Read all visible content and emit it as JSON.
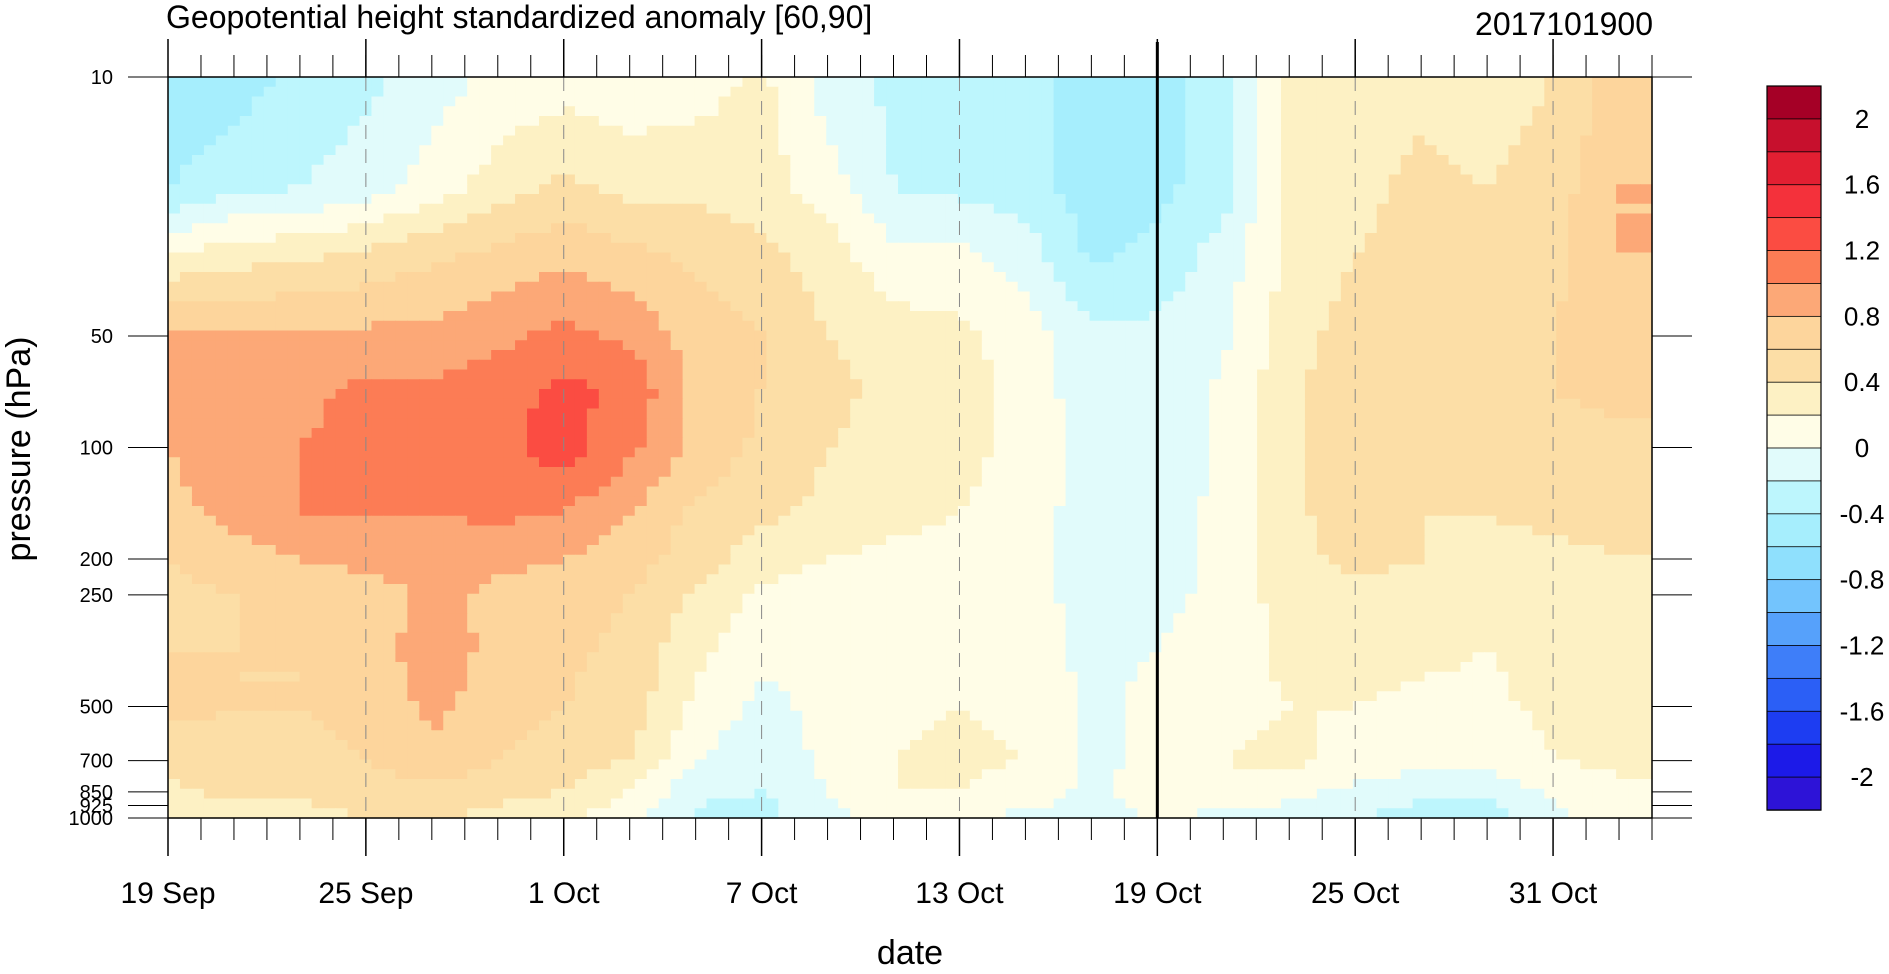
{
  "chart_data": {
    "type": "heatmap",
    "subtype": "time-pressure filled contour",
    "title": "Geopotential height standardized anomaly [60,90]",
    "date_label": "2017101900",
    "xlabel": "date",
    "ylabel": "pressure (hPa)",
    "x_range": [
      "2017-09-19",
      "2017-11-03"
    ],
    "x_ticks": [
      {
        "date": "2017-09-19",
        "label": "19 Sep"
      },
      {
        "date": "2017-09-25",
        "label": "25 Sep"
      },
      {
        "date": "2017-10-01",
        "label": "1 Oct"
      },
      {
        "date": "2017-10-07",
        "label": "7 Oct"
      },
      {
        "date": "2017-10-13",
        "label": "13 Oct"
      },
      {
        "date": "2017-10-19",
        "label": "19 Oct"
      },
      {
        "date": "2017-10-25",
        "label": "25 Oct"
      },
      {
        "date": "2017-10-31",
        "label": "31 Oct"
      }
    ],
    "y_scale": "log",
    "y_reversed": true,
    "y_range": [
      1000,
      10
    ],
    "y_ticks": [
      10,
      50,
      100,
      200,
      250,
      500,
      700,
      850,
      925,
      1000
    ],
    "y_tick_labels": [
      "10",
      "50",
      "100",
      "200",
      "250",
      "500",
      "700",
      "850",
      "925",
      "1000"
    ],
    "vertical_line_date": "2017-10-19",
    "colorbar": {
      "levels": [
        -2.2,
        -2,
        -1.8,
        -1.6,
        -1.4,
        -1.2,
        -1,
        -0.8,
        -0.6,
        -0.4,
        -0.2,
        0,
        0.2,
        0.4,
        0.6,
        0.8,
        1,
        1.2,
        1.4,
        1.6,
        1.8,
        2,
        2.2
      ],
      "colors": [
        "#2d13d7",
        "#1c1ae8",
        "#1d3df2",
        "#2b5ff6",
        "#3e7ef9",
        "#56a1fb",
        "#73c4fd",
        "#8fe0fd",
        "#a6eefd",
        "#bdf6fd",
        "#e1fbfb",
        "#fffde7",
        "#fdf1c4",
        "#fcdea6",
        "#fdd59c",
        "#fca877",
        "#fc7c55",
        "#fb4c42",
        "#f4313b",
        "#e21f32",
        "#c7102d",
        "#a50026"
      ],
      "labels": [
        "-2",
        "-1.6",
        "-1.2",
        "-0.8",
        "-0.4",
        "0",
        "0.4",
        "0.8",
        "1.2",
        "1.6",
        "2"
      ]
    },
    "field": {
      "dates": [
        "2017-09-19",
        "2017-09-21",
        "2017-09-23",
        "2017-09-25",
        "2017-09-27",
        "2017-09-29",
        "2017-10-01",
        "2017-10-03",
        "2017-10-05",
        "2017-10-07",
        "2017-10-09",
        "2017-10-11",
        "2017-10-13",
        "2017-10-15",
        "2017-10-17",
        "2017-10-19",
        "2017-10-21",
        "2017-10-23",
        "2017-10-25",
        "2017-10-27",
        "2017-10-29",
        "2017-10-31",
        "2017-11-02"
      ],
      "levels_hPa": [
        10,
        20,
        30,
        50,
        70,
        100,
        150,
        200,
        250,
        350,
        500,
        700,
        850,
        1000
      ],
      "values": [
        [
          -0.6,
          -0.5,
          -0.35,
          -0.25,
          -0.1,
          0.05,
          0.1,
          0.05,
          0.1,
          0.25,
          -0.1,
          -0.25,
          -0.3,
          -0.3,
          -0.5,
          -0.5,
          -0.3,
          0.3,
          0.25,
          0.35,
          0.3,
          0.4,
          0.7
        ],
        [
          -0.4,
          -0.25,
          -0.2,
          -0.1,
          0.1,
          0.3,
          0.45,
          0.35,
          0.35,
          0.3,
          0.1,
          -0.2,
          -0.25,
          -0.3,
          -0.5,
          -0.45,
          -0.3,
          0.3,
          0.35,
          0.45,
          0.4,
          0.5,
          0.8
        ],
        [
          0.2,
          0.3,
          0.35,
          0.45,
          0.55,
          0.65,
          0.75,
          0.65,
          0.55,
          0.45,
          0.3,
          0.05,
          0.05,
          -0.1,
          -0.45,
          -0.35,
          -0.1,
          0.25,
          0.4,
          0.45,
          0.45,
          0.55,
          0.8
        ],
        [
          0.85,
          0.85,
          0.85,
          0.85,
          0.85,
          0.95,
          1.05,
          0.95,
          0.7,
          0.6,
          0.4,
          0.3,
          0.25,
          0.1,
          -0.15,
          -0.15,
          -0.05,
          0.3,
          0.5,
          0.45,
          0.5,
          0.6,
          0.7
        ],
        [
          0.85,
          1.0,
          0.95,
          1.05,
          1.05,
          1.1,
          1.25,
          1.15,
          0.75,
          0.6,
          0.45,
          0.35,
          0.3,
          0.1,
          -0.1,
          -0.15,
          0.05,
          0.35,
          0.55,
          0.45,
          0.45,
          0.6,
          0.65
        ],
        [
          0.8,
          1.0,
          1.0,
          1.05,
          1.05,
          1.15,
          1.3,
          1.05,
          0.75,
          0.55,
          0.4,
          0.35,
          0.3,
          0.1,
          -0.05,
          -0.15,
          0.05,
          0.35,
          0.6,
          0.45,
          0.4,
          0.5,
          0.55
        ],
        [
          0.7,
          0.9,
          1.0,
          1.0,
          1.0,
          1.05,
          1.0,
          0.8,
          0.55,
          0.45,
          0.35,
          0.25,
          0.2,
          0.05,
          -0.05,
          -0.1,
          0.05,
          0.35,
          0.5,
          0.4,
          0.4,
          0.45,
          0.45
        ],
        [
          0.6,
          0.7,
          0.8,
          0.85,
          0.9,
          0.85,
          0.8,
          0.7,
          0.5,
          0.3,
          0.2,
          0.15,
          0.15,
          0.05,
          -0.05,
          -0.1,
          0.05,
          0.35,
          0.45,
          0.4,
          0.35,
          0.35,
          0.4
        ],
        [
          0.55,
          0.6,
          0.7,
          0.7,
          0.85,
          0.75,
          0.7,
          0.6,
          0.35,
          0.15,
          0.1,
          0.1,
          0.15,
          0.05,
          -0.05,
          -0.05,
          0.05,
          0.3,
          0.35,
          0.35,
          0.3,
          0.3,
          0.35
        ],
        [
          0.6,
          0.6,
          0.6,
          0.7,
          0.9,
          0.75,
          0.65,
          0.55,
          0.25,
          0.05,
          0.05,
          0.1,
          0.15,
          0.1,
          -0.05,
          0.0,
          0.1,
          0.25,
          0.3,
          0.25,
          0.2,
          0.3,
          0.35
        ],
        [
          0.65,
          0.6,
          0.6,
          0.65,
          0.85,
          0.7,
          0.6,
          0.5,
          0.15,
          -0.05,
          0.05,
          0.15,
          0.2,
          0.15,
          -0.05,
          0.05,
          0.15,
          0.2,
          0.2,
          0.15,
          0.15,
          0.25,
          0.3
        ],
        [
          0.5,
          0.55,
          0.55,
          0.6,
          0.75,
          0.6,
          0.5,
          0.4,
          0.0,
          -0.15,
          0.05,
          0.2,
          0.25,
          0.2,
          -0.05,
          0.05,
          0.2,
          0.25,
          0.15,
          0.05,
          0.05,
          0.2,
          0.25
        ],
        [
          0.35,
          0.45,
          0.45,
          0.5,
          0.55,
          0.45,
          0.4,
          0.2,
          -0.15,
          -0.2,
          0.0,
          0.2,
          0.2,
          0.1,
          -0.05,
          0.1,
          0.15,
          0.05,
          -0.05,
          -0.15,
          -0.15,
          0.05,
          0.15
        ],
        [
          0.3,
          0.3,
          0.3,
          0.4,
          0.4,
          0.35,
          0.25,
          0.05,
          -0.25,
          -0.3,
          -0.05,
          0.1,
          0.05,
          -0.05,
          -0.05,
          0.0,
          -0.05,
          -0.1,
          -0.2,
          -0.3,
          -0.3,
          -0.05,
          0.05
        ]
      ]
    }
  }
}
